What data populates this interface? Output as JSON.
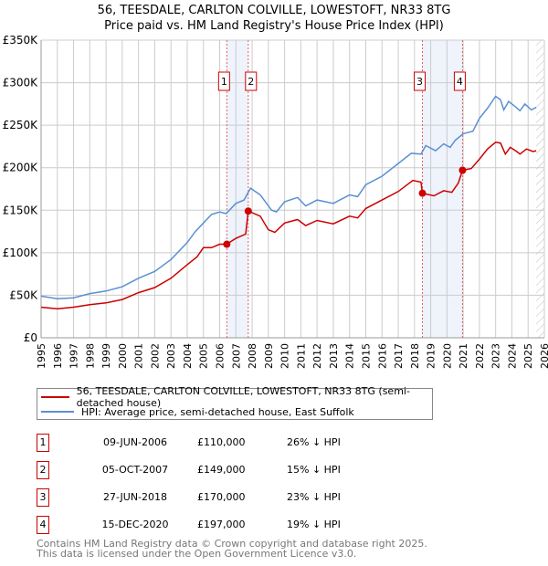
{
  "title": "56, TEESDALE, CARLTON COLVILLE, LOWESTOFT, NR33 8TG",
  "subtitle": "Price paid vs. HM Land Registry's House Price Index (HPI)",
  "chart_data": {
    "type": "line",
    "title": "56, TEESDALE, CARLTON COLVILLE, LOWESTOFT, NR33 8TG",
    "subtitle": "Price paid vs. HM Land Registry's House Price Index (HPI)",
    "xlim": [
      1995,
      2026
    ],
    "ylim": [
      0,
      350000
    ],
    "y_ticks": [
      {
        "v": 0,
        "label": "£0"
      },
      {
        "v": 50000,
        "label": "£50K"
      },
      {
        "v": 100000,
        "label": "£100K"
      },
      {
        "v": 150000,
        "label": "£150K"
      },
      {
        "v": 200000,
        "label": "£200K"
      },
      {
        "v": 250000,
        "label": "£250K"
      },
      {
        "v": 300000,
        "label": "£300K"
      },
      {
        "v": 350000,
        "label": "£350K"
      }
    ],
    "x_ticks": [
      "1995",
      "1996",
      "1997",
      "1998",
      "1999",
      "2000",
      "2001",
      "2002",
      "2003",
      "2004",
      "2005",
      "2006",
      "2007",
      "2008",
      "2009",
      "2010",
      "2011",
      "2012",
      "2013",
      "2014",
      "2015",
      "2016",
      "2017",
      "2018",
      "2019",
      "2020",
      "2021",
      "2022",
      "2023",
      "2024",
      "2025",
      "2026"
    ],
    "grid": true,
    "legend_placement": "below",
    "series": [
      {
        "name": "56, TEESDALE, CARLTON COLVILLE, LOWESTOFT, NR33 8TG (semi-detached house)",
        "color": "#cc0000",
        "x": [
          1995,
          1996,
          1997,
          1998,
          1999,
          2000,
          2001,
          2002,
          2003,
          2004,
          2004.6,
          2005,
          2005.5,
          2006,
          2006.44,
          2007,
          2007.6,
          2007.76,
          2008.5,
          2009,
          2009.4,
          2010,
          2010.8,
          2011.3,
          2012,
          2013,
          2014,
          2014.5,
          2015,
          2016,
          2017,
          2017.9,
          2018.4,
          2018.49,
          2019.2,
          2019.8,
          2020.3,
          2020.7,
          2020.96,
          2021.5,
          2022,
          2022.5,
          2023,
          2023.3,
          2023.6,
          2023.9,
          2024.3,
          2024.5,
          2024.9,
          2025.3,
          2025.5
        ],
        "y": [
          36000,
          34000,
          36000,
          39000,
          41000,
          45000,
          53000,
          59000,
          70000,
          86000,
          95000,
          106000,
          106000,
          110000,
          110000,
          117000,
          122000,
          149000,
          143000,
          127000,
          124000,
          135000,
          139000,
          132000,
          138000,
          134000,
          143000,
          141000,
          152000,
          162000,
          172000,
          185000,
          183000,
          170000,
          167000,
          173000,
          171000,
          182000,
          197000,
          199000,
          210000,
          222000,
          230000,
          229000,
          216000,
          224000,
          219000,
          216000,
          222000,
          219000,
          220000
        ]
      },
      {
        "name": "HPI: Average price, semi-detached house, East Suffolk",
        "color": "#5b8fd4",
        "x": [
          1995,
          1996,
          1997,
          1998,
          1999,
          2000,
          2001,
          2002,
          2003,
          2004,
          2004.5,
          2005,
          2005.5,
          2006,
          2006.4,
          2007,
          2007.5,
          2007.9,
          2008.5,
          2009.2,
          2009.5,
          2010,
          2010.8,
          2011.3,
          2012,
          2013,
          2014,
          2014.5,
          2015,
          2016,
          2017,
          2017.8,
          2018.4,
          2018.7,
          2019.3,
          2019.8,
          2020.2,
          2020.5,
          2021,
          2021.6,
          2022,
          2022.5,
          2023,
          2023.3,
          2023.5,
          2023.8,
          2024.2,
          2024.5,
          2024.8,
          2025.2,
          2025.5
        ],
        "y": [
          49000,
          46000,
          47000,
          52000,
          55000,
          60000,
          70000,
          78000,
          92000,
          112000,
          125000,
          135000,
          145000,
          148000,
          146000,
          158000,
          162000,
          176000,
          168000,
          150000,
          148000,
          160000,
          165000,
          155000,
          162000,
          158000,
          168000,
          166000,
          180000,
          190000,
          205000,
          217000,
          216000,
          226000,
          220000,
          228000,
          224000,
          232000,
          240000,
          243000,
          258000,
          270000,
          284000,
          280000,
          268000,
          278000,
          272000,
          267000,
          275000,
          268000,
          271000
        ]
      }
    ],
    "sales": [
      {
        "n": "1",
        "x": 2006.44,
        "y": 110000,
        "date": "09-JUN-2006",
        "price": "£110,000",
        "hpi": "26% ↓ HPI"
      },
      {
        "n": "2",
        "x": 2007.76,
        "y": 149000,
        "date": "05-OCT-2007",
        "price": "£149,000",
        "hpi": "15% ↓ HPI"
      },
      {
        "n": "3",
        "x": 2018.49,
        "y": 170000,
        "date": "27-JUN-2018",
        "price": "£170,000",
        "hpi": "23% ↓ HPI"
      },
      {
        "n": "4",
        "x": 2020.96,
        "y": 197000,
        "date": "15-DEC-2020",
        "price": "£197,000",
        "hpi": "19% ↓ HPI"
      }
    ],
    "shaded_ranges": [
      [
        2006.44,
        2007.76
      ],
      [
        2018.49,
        2020.96
      ]
    ],
    "hatched_from": 2025.5
  },
  "legend": {
    "red": "56, TEESDALE, CARLTON COLVILLE, LOWESTOFT, NR33 8TG (semi-detached house)",
    "blue": "HPI: Average price, semi-detached house, East Suffolk"
  },
  "footer": {
    "line1": "Contains HM Land Registry data © Crown copyright and database right 2025.",
    "line2": "This data is licensed under the Open Government Licence v3.0."
  }
}
